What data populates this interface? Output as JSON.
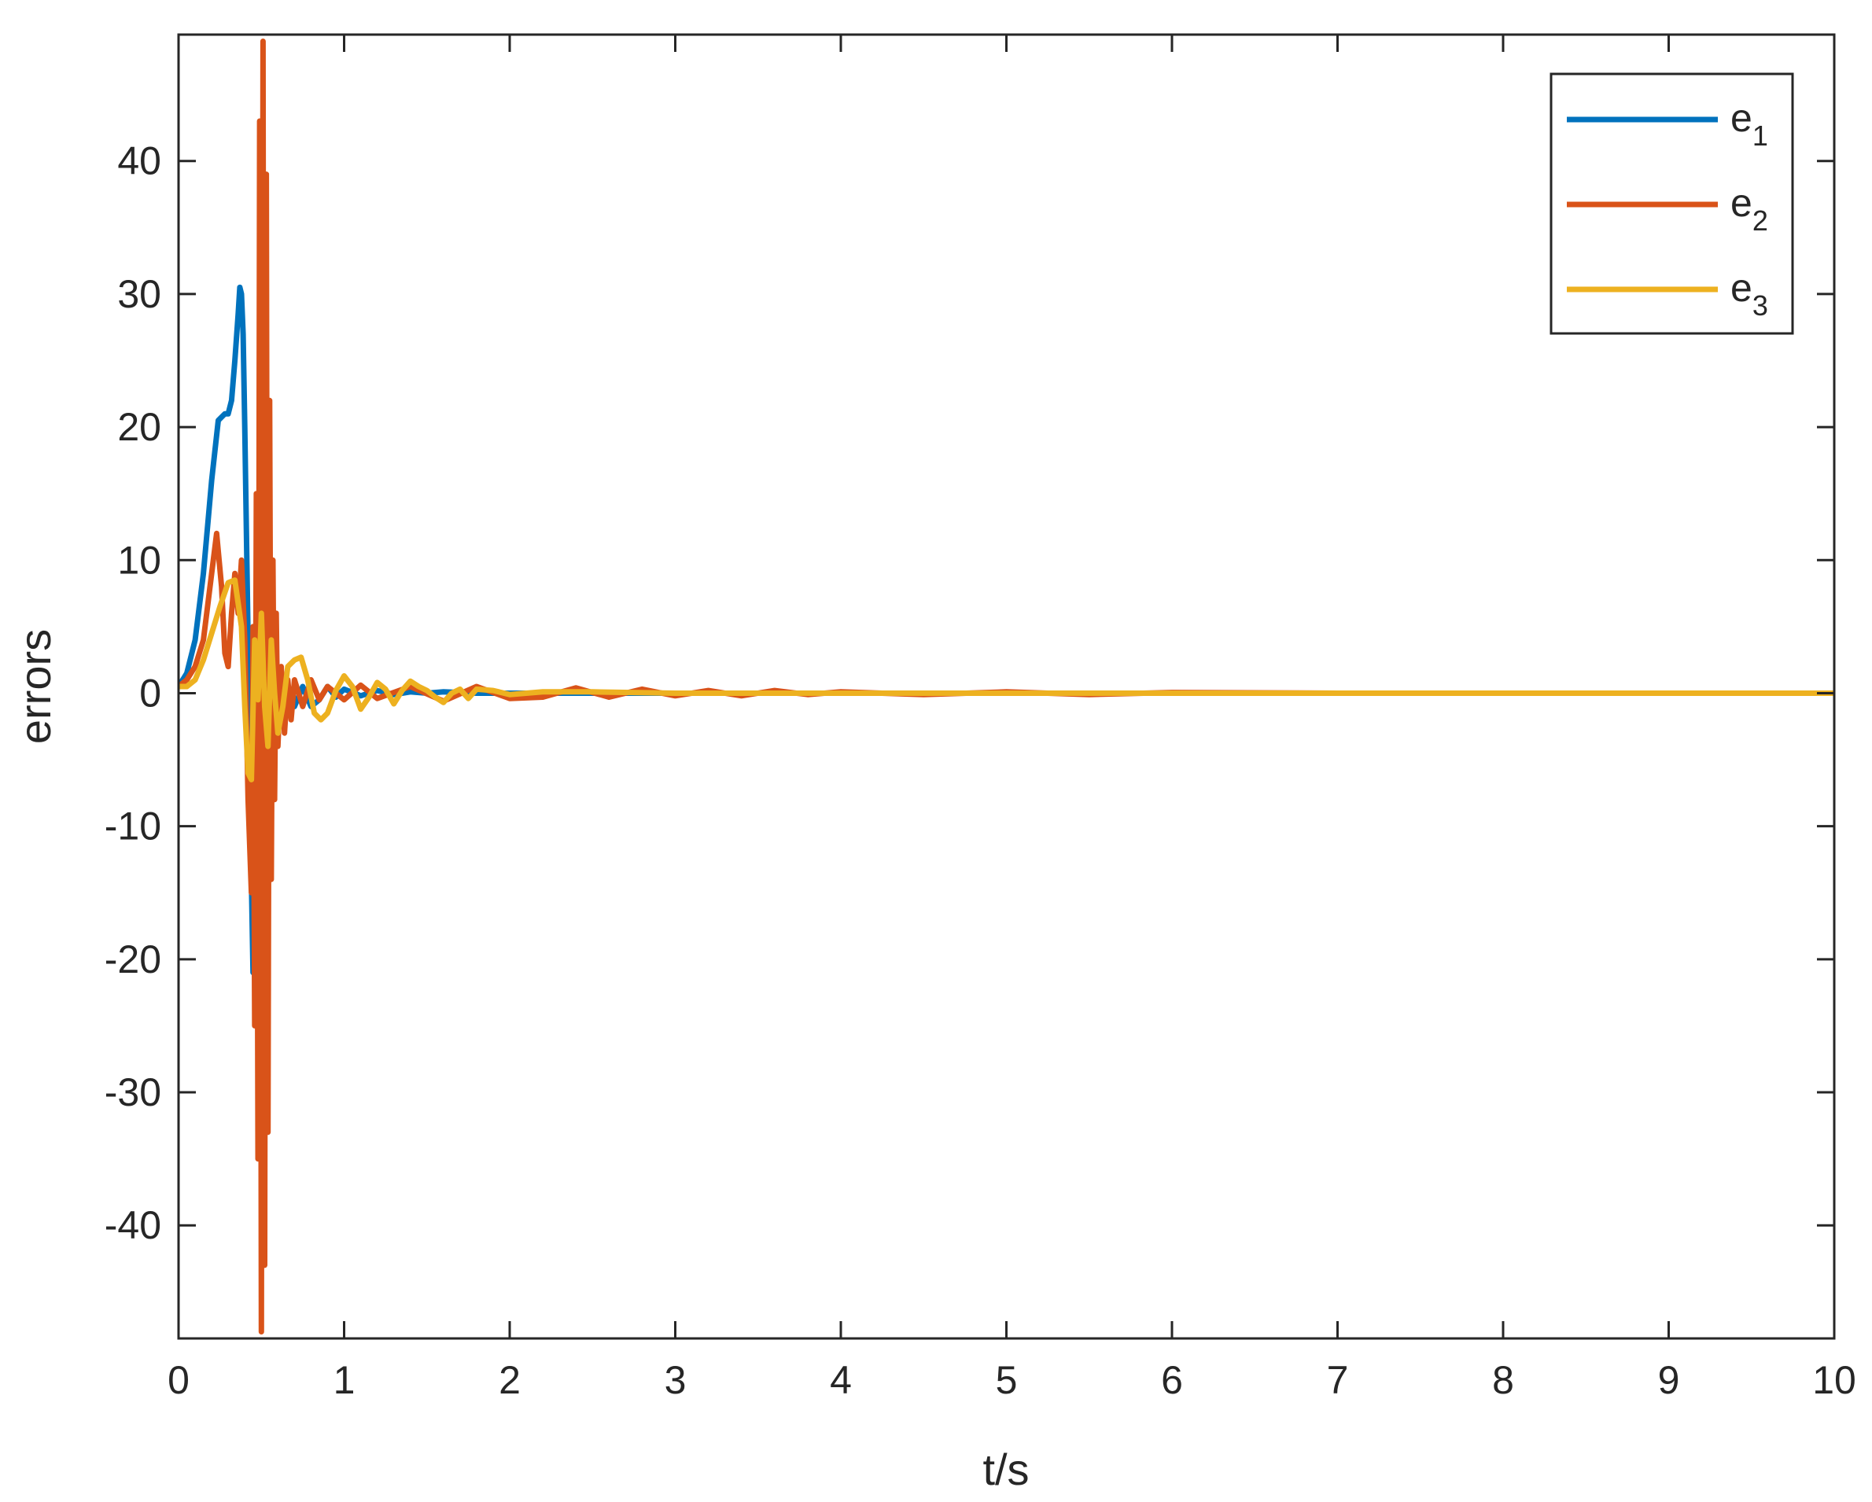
{
  "chart_data": {
    "type": "line",
    "xlabel": "t/s",
    "ylabel": "errors",
    "xlim": [
      0,
      10
    ],
    "ylim": [
      -48.5,
      49.5
    ],
    "xticks": [
      0,
      1,
      2,
      3,
      4,
      5,
      6,
      7,
      8,
      9,
      10
    ],
    "yticks": [
      -40,
      -30,
      -20,
      -10,
      0,
      10,
      20,
      30,
      40
    ],
    "grid": false,
    "legend_position": "top-right",
    "series": [
      {
        "name": "e1",
        "label_base": "e",
        "label_sub": "1",
        "color": "#0072BD",
        "x": [
          0,
          0.05,
          0.1,
          0.15,
          0.2,
          0.24,
          0.28,
          0.3,
          0.32,
          0.34,
          0.36,
          0.37,
          0.38,
          0.39,
          0.4,
          0.41,
          0.42,
          0.43,
          0.44,
          0.45,
          0.46,
          0.47,
          0.48,
          0.5,
          0.52,
          0.55,
          0.58,
          0.6,
          0.65,
          0.7,
          0.75,
          0.8,
          0.85,
          0.9,
          0.95,
          1.0,
          1.1,
          1.2,
          1.3,
          1.4,
          1.5,
          1.6,
          1.8,
          2.0,
          2.5,
          3.0,
          4.0,
          5.0,
          6.0,
          7.0,
          8.0,
          9.0,
          10.0
        ],
        "y": [
          0.5,
          1.5,
          4,
          9,
          16,
          20.5,
          21,
          21,
          22,
          25,
          28.5,
          30.5,
          30,
          27,
          20,
          12,
          4,
          -6,
          -14,
          -21,
          -18,
          -8,
          2,
          6,
          0,
          -3,
          1,
          -1,
          0.5,
          -1,
          0.5,
          -1,
          -0.5,
          0.5,
          -0.3,
          0.3,
          -0.2,
          0.2,
          -0.1,
          0.1,
          0,
          0.1,
          0,
          0,
          0,
          0,
          0,
          0,
          0,
          0,
          0,
          0,
          0
        ]
      },
      {
        "name": "e2",
        "label_base": "e",
        "label_sub": "2",
        "color": "#D95319",
        "x": [
          0,
          0.05,
          0.1,
          0.15,
          0.2,
          0.23,
          0.26,
          0.28,
          0.3,
          0.32,
          0.34,
          0.36,
          0.38,
          0.4,
          0.42,
          0.44,
          0.45,
          0.46,
          0.47,
          0.48,
          0.49,
          0.5,
          0.51,
          0.52,
          0.53,
          0.54,
          0.55,
          0.56,
          0.57,
          0.58,
          0.59,
          0.6,
          0.62,
          0.64,
          0.66,
          0.68,
          0.7,
          0.75,
          0.8,
          0.85,
          0.9,
          1.0,
          1.1,
          1.2,
          1.4,
          1.6,
          1.8,
          2.0,
          2.2,
          2.4,
          2.6,
          2.8,
          3.0,
          3.2,
          3.4,
          3.6,
          3.8,
          4.0,
          4.5,
          5.0,
          5.5,
          6.0,
          7.0,
          8.0,
          9.0,
          10.0
        ],
        "y": [
          0.5,
          1,
          2,
          4,
          9,
          12,
          8,
          3,
          2,
          6,
          9,
          6,
          10,
          4,
          -8,
          -15,
          5,
          -25,
          15,
          -35,
          43,
          -48,
          49,
          -43,
          39,
          -33,
          22,
          -14,
          10,
          -8,
          6,
          -4,
          2,
          -3,
          1,
          -2,
          1,
          -1,
          1,
          -0.5,
          0.5,
          -0.5,
          0.6,
          -0.4,
          0.5,
          -0.6,
          0.5,
          -0.4,
          -0.3,
          0.4,
          -0.3,
          0.3,
          -0.2,
          0.2,
          -0.2,
          0.2,
          -0.1,
          0.1,
          -0.1,
          0.1,
          -0.1,
          0.05,
          0,
          0,
          0,
          0
        ]
      },
      {
        "name": "e3",
        "label_base": "e",
        "label_sub": "3",
        "color": "#EDB120",
        "x": [
          0,
          0.05,
          0.1,
          0.15,
          0.2,
          0.25,
          0.3,
          0.34,
          0.38,
          0.4,
          0.42,
          0.44,
          0.46,
          0.48,
          0.5,
          0.52,
          0.54,
          0.56,
          0.58,
          0.6,
          0.63,
          0.66,
          0.7,
          0.74,
          0.78,
          0.82,
          0.86,
          0.9,
          0.95,
          1.0,
          1.05,
          1.1,
          1.15,
          1.2,
          1.25,
          1.3,
          1.35,
          1.4,
          1.45,
          1.5,
          1.55,
          1.6,
          1.65,
          1.7,
          1.75,
          1.8,
          1.9,
          2.0,
          2.2,
          2.5,
          3.0,
          3.5,
          4.0,
          5.0,
          6.0,
          7.0,
          8.0,
          9.0,
          10.0
        ],
        "y": [
          0.5,
          0.5,
          1,
          2.5,
          4.5,
          6.5,
          8.3,
          8.5,
          5,
          -1,
          -6,
          -6.5,
          4,
          -0.5,
          6,
          -1,
          -4,
          4,
          0,
          -3,
          -1,
          2,
          2.5,
          2.7,
          1,
          -1.5,
          -2,
          -1.5,
          0.2,
          1.3,
          0.5,
          -1.2,
          -0.3,
          0.8,
          0.3,
          -0.8,
          0.2,
          0.9,
          0.5,
          0.2,
          -0.3,
          -0.7,
          0,
          0.3,
          -0.4,
          0.3,
          0.2,
          -0.1,
          0.1,
          0.1,
          0,
          0,
          0,
          0,
          0,
          0,
          0,
          0,
          0
        ]
      }
    ]
  }
}
